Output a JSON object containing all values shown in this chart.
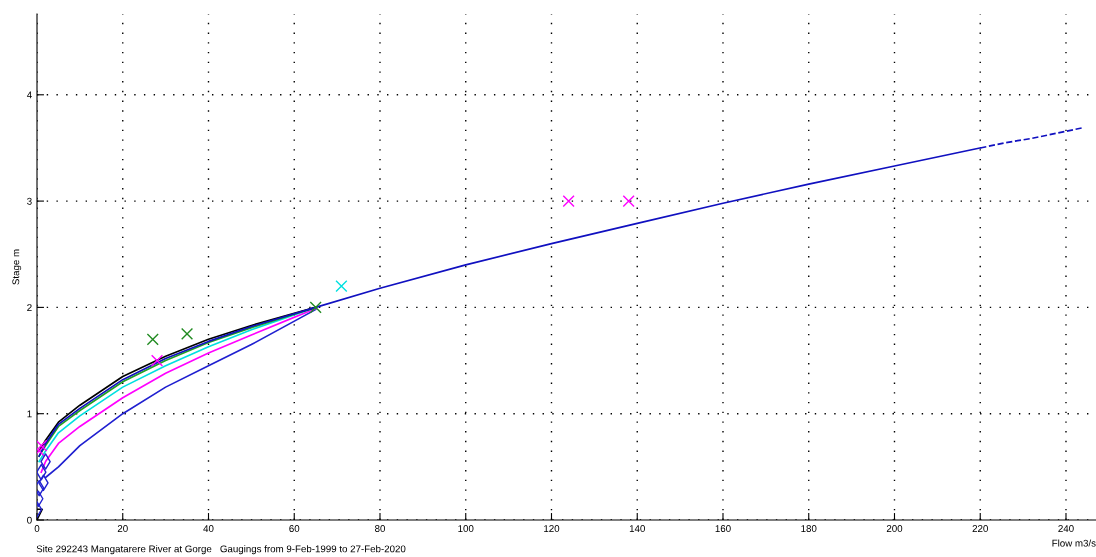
{
  "chart_data": {
    "type": "line",
    "xlabel": "Flow m3/s",
    "ylabel": "Stage m",
    "annotations": [
      "Site 292243 Mangatarere River at Gorge   Gaugings from 9-Feb-1999 to 27-Feb-2020"
    ],
    "xlim": [
      0,
      247
    ],
    "ylim": [
      0,
      4.76
    ],
    "xticks": [
      0,
      20,
      40,
      60,
      80,
      100,
      120,
      140,
      160,
      180,
      200,
      220,
      240
    ],
    "yticks": [
      0,
      1,
      2,
      3,
      4
    ],
    "grid": true,
    "line_style": "solid",
    "series": [
      {
        "color": "#2020d0",
        "x": [
          2,
          5,
          10,
          20,
          30,
          40,
          50,
          65
        ],
        "values": [
          0.4,
          0.5,
          0.7,
          1.0,
          1.25,
          1.45,
          1.65,
          1.98
        ]
      },
      {
        "color": "#ff00ff",
        "x": [
          1,
          2,
          5,
          10,
          20,
          30,
          40,
          50,
          65
        ],
        "values": [
          0.45,
          0.55,
          0.72,
          0.88,
          1.15,
          1.38,
          1.57,
          1.74,
          1.99
        ]
      },
      {
        "color": "#00e0e0",
        "x": [
          0.5,
          2,
          5,
          10,
          20,
          30,
          40,
          50,
          65
        ],
        "values": [
          0.55,
          0.65,
          0.82,
          0.98,
          1.25,
          1.45,
          1.63,
          1.79,
          2.0
        ]
      },
      {
        "color": "#20a020",
        "x": [
          0.5,
          2,
          5,
          10,
          20,
          30,
          40,
          50,
          65
        ],
        "values": [
          0.6,
          0.7,
          0.88,
          1.03,
          1.3,
          1.5,
          1.67,
          1.81,
          2.0
        ]
      },
      {
        "color": "#000000",
        "x": [
          0.5,
          2,
          5,
          10,
          20,
          30,
          40,
          50,
          65
        ],
        "values": [
          0.65,
          0.75,
          0.92,
          1.08,
          1.35,
          1.54,
          1.7,
          1.83,
          2.0
        ]
      },
      {
        "color": "#1010c0",
        "x": [
          0.5,
          2,
          5,
          10,
          20,
          30,
          40,
          50,
          65,
          80,
          100,
          120,
          140,
          160,
          180,
          200,
          220
        ],
        "values": [
          0.6,
          0.72,
          0.9,
          1.05,
          1.32,
          1.52,
          1.68,
          1.82,
          2.0,
          2.18,
          2.4,
          2.6,
          2.79,
          2.98,
          3.16,
          3.33,
          3.5
        ]
      },
      {
        "color": "#1010c0",
        "line_style": "dashed",
        "x": [
          220,
          226,
          232,
          238,
          244
        ],
        "values": [
          3.5,
          3.55,
          3.59,
          3.64,
          3.69
        ]
      },
      {
        "type": "scatter",
        "marker": "cross",
        "color": "#228b22",
        "x": [
          27,
          35,
          65
        ],
        "values": [
          1.7,
          1.75,
          2.0
        ]
      },
      {
        "type": "scatter",
        "marker": "cross",
        "color": "#ff00ff",
        "x": [
          124,
          138,
          28,
          0.5,
          1
        ],
        "values": [
          3.0,
          3.0,
          1.5,
          0.65,
          0.7
        ]
      },
      {
        "type": "scatter",
        "marker": "cross",
        "color": "#00e0e0",
        "x": [
          71
        ],
        "values": [
          2.2
        ]
      },
      {
        "type": "scatter",
        "marker": "triangle",
        "color": "#000000",
        "x": [
          0
        ],
        "values": [
          0.05
        ]
      },
      {
        "type": "scatter",
        "marker": "diamond",
        "color": "#2020d0",
        "x": [
          0,
          0.5,
          1,
          2,
          1.5,
          0.3
        ],
        "values": [
          0.1,
          0.3,
          0.45,
          0.55,
          0.35,
          0.2
        ]
      }
    ]
  }
}
